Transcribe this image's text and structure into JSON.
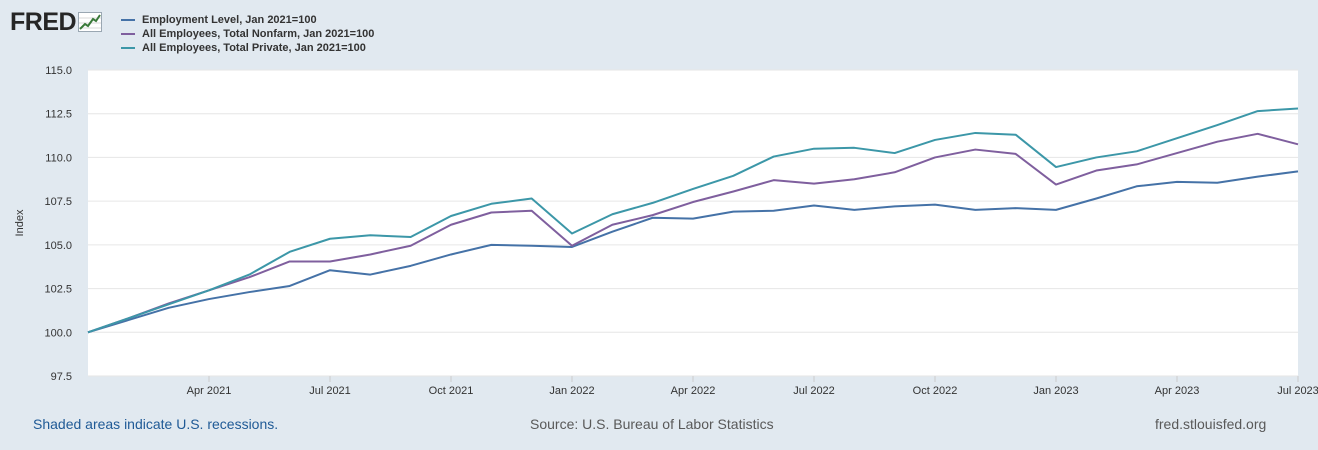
{
  "brand": {
    "logo_text": "FRED"
  },
  "colors": {
    "background": "#e1e9f0",
    "plot_background": "#ffffff",
    "gridline": "#e6e6e6",
    "series": [
      "#4572a7",
      "#7f5f9e",
      "#3c97a8"
    ]
  },
  "chart_data": {
    "type": "line",
    "title": "",
    "xlabel": "",
    "ylabel": "Index",
    "ylim": [
      97.5,
      115.0
    ],
    "yticks": [
      "97.5",
      "100.0",
      "102.5",
      "105.0",
      "107.5",
      "110.0",
      "112.5",
      "115.0"
    ],
    "x": [
      "Jan 2021",
      "Feb 2021",
      "Mar 2021",
      "Apr 2021",
      "May 2021",
      "Jun 2021",
      "Jul 2021",
      "Aug 2021",
      "Sep 2021",
      "Oct 2021",
      "Nov 2021",
      "Dec 2021",
      "Jan 2022",
      "Feb 2022",
      "Mar 2022",
      "Apr 2022",
      "May 2022",
      "Jun 2022",
      "Jul 2022",
      "Aug 2022",
      "Sep 2022",
      "Oct 2022",
      "Nov 2022",
      "Dec 2022",
      "Jan 2023",
      "Feb 2023",
      "Mar 2023",
      "Apr 2023",
      "May 2023",
      "Jun 2023",
      "Jul 2023"
    ],
    "xtick_labels": [
      {
        "index": 3,
        "label": "Apr 2021"
      },
      {
        "index": 6,
        "label": "Jul 2021"
      },
      {
        "index": 9,
        "label": "Oct 2021"
      },
      {
        "index": 12,
        "label": "Jan 2022"
      },
      {
        "index": 15,
        "label": "Apr 2022"
      },
      {
        "index": 18,
        "label": "Jul 2022"
      },
      {
        "index": 21,
        "label": "Oct 2022"
      },
      {
        "index": 24,
        "label": "Jan 2023"
      },
      {
        "index": 27,
        "label": "Apr 2023"
      },
      {
        "index": 30,
        "label": "Jul 2023"
      }
    ],
    "series": [
      {
        "name": "Employment Level, Jan 2021=100",
        "color": "#4572a7",
        "values": [
          100.0,
          100.7,
          101.4,
          101.9,
          102.3,
          102.65,
          103.55,
          103.3,
          103.8,
          104.45,
          105.0,
          104.95,
          104.88,
          105.75,
          106.55,
          106.5,
          106.9,
          106.95,
          107.25,
          107.0,
          107.2,
          107.3,
          107.0,
          107.1,
          107.0,
          107.65,
          108.35,
          108.6,
          108.55,
          108.9,
          109.2
        ]
      },
      {
        "name": "All Employees, Total Nonfarm, Jan 2021=100",
        "color": "#7f5f9e",
        "values": [
          100.0,
          100.8,
          101.65,
          102.4,
          103.15,
          104.05,
          104.05,
          104.45,
          104.95,
          106.15,
          106.85,
          106.95,
          104.95,
          106.15,
          106.7,
          107.45,
          108.05,
          108.7,
          108.5,
          108.75,
          109.15,
          110.0,
          110.45,
          110.2,
          108.45,
          109.25,
          109.6,
          110.25,
          110.9,
          111.35,
          110.75
        ]
      },
      {
        "name": "All Employees, Total Private, Jan 2021=100",
        "color": "#3c97a8",
        "values": [
          100.0,
          100.8,
          101.6,
          102.4,
          103.3,
          104.6,
          105.35,
          105.55,
          105.45,
          106.65,
          107.35,
          107.65,
          105.65,
          106.75,
          107.4,
          108.2,
          108.95,
          110.05,
          110.5,
          110.55,
          110.25,
          111.0,
          111.4,
          111.3,
          109.45,
          110.0,
          110.35,
          111.1,
          111.85,
          112.65,
          112.8
        ]
      }
    ]
  },
  "footer": {
    "left": "Shaded areas indicate U.S. recessions.",
    "center": "Source: U.S. Bureau of Labor Statistics",
    "right": "fred.stlouisfed.org"
  }
}
